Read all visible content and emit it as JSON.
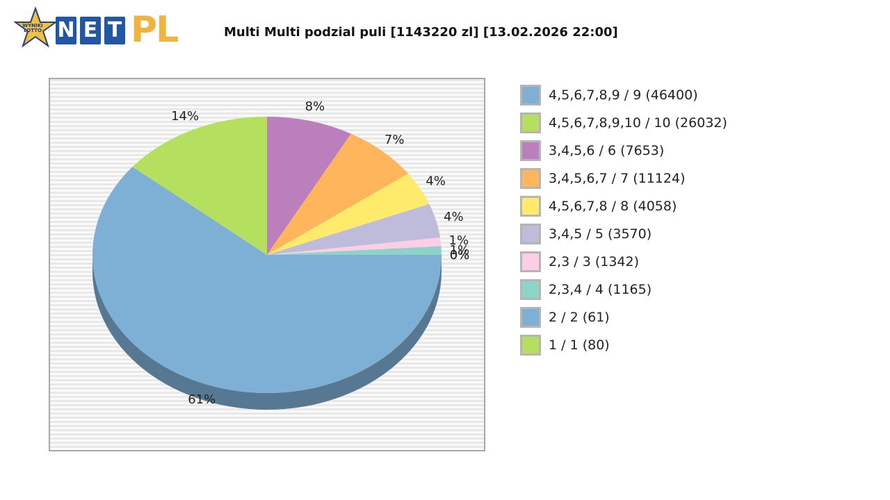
{
  "logo": {
    "badge_text": "WYNIKI LOTTO",
    "letters": [
      "N",
      "E",
      "T"
    ],
    "suffix": "PL",
    "badge_color": "#f0c040",
    "box_color": "#2257a5",
    "suffix_color": "#f0b33d"
  },
  "chart_data": {
    "type": "pie",
    "title": "Multi Multi podzial puli [1143220 zl] [13.02.2026 22:00]",
    "legend_position": "right",
    "slices": [
      {
        "legend": "4,5,6,7,8,9 / 9 (46400)",
        "percent_label": "61%",
        "value": 61,
        "color": "#7eb0d6"
      },
      {
        "legend": "4,5,6,7,8,9,10 / 10 (26032)",
        "percent_label": "14%",
        "value": 14,
        "color": "#b5e05f"
      },
      {
        "legend": "3,4,5,6 / 6 (7653)",
        "percent_label": "8%",
        "value": 8,
        "color": "#bc7fbe"
      },
      {
        "legend": "3,4,5,6,7 / 7 (11124)",
        "percent_label": "7%",
        "value": 7,
        "color": "#feb55c"
      },
      {
        "legend": "4,5,6,7,8 / 8 (4058)",
        "percent_label": "4%",
        "value": 4,
        "color": "#feeb6b"
      },
      {
        "legend": "3,4,5 / 5 (3570)",
        "percent_label": "4%",
        "value": 4,
        "color": "#bfbbdb"
      },
      {
        "legend": "2,3 / 3 (1342)",
        "percent_label": "1%",
        "value": 1,
        "color": "#fccde5"
      },
      {
        "legend": "2,3,4 / 4 (1165)",
        "percent_label": "1%",
        "value": 1,
        "color": "#8dd3c7"
      },
      {
        "legend": "2 / 2 (61)",
        "percent_label": "0%",
        "value": 0,
        "color": "#7eb0d6"
      },
      {
        "legend": "1 / 1 (80)",
        "percent_label": "0%",
        "value": 0,
        "color": "#b5e05f"
      }
    ]
  }
}
